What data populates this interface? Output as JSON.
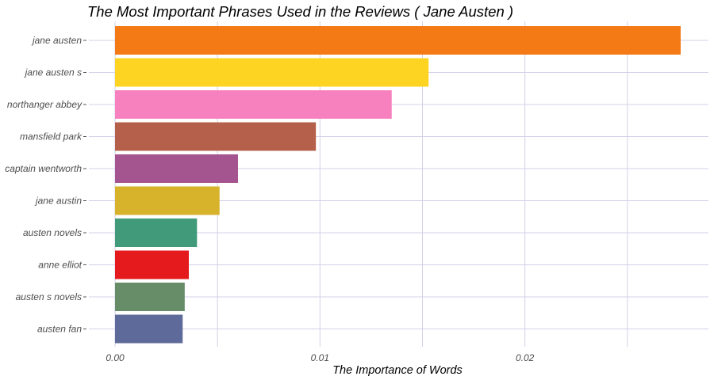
{
  "chart_data": {
    "type": "bar",
    "orientation": "horizontal",
    "title": "The Most Important Phrases Used in the Reviews ( Jane Austen )",
    "xlabel": "The Importance of Words",
    "ylabel": "",
    "xlim": [
      0,
      0.0285
    ],
    "x_ticks": [
      0.0,
      0.01,
      0.02
    ],
    "x_tick_labels": [
      "0.00",
      "0.01",
      "0.02"
    ],
    "x_minor_ticks": [
      0.005,
      0.015,
      0.025
    ],
    "grid": true,
    "legend": "none",
    "categories": [
      "jane austen",
      "jane austen s",
      "northanger abbey",
      "mansfield park",
      "captain wentworth",
      "jane austin",
      "austen novels",
      "anne elliot",
      "austen s novels",
      "austen fan"
    ],
    "values": [
      0.0276,
      0.0153,
      0.0135,
      0.0098,
      0.006,
      0.0051,
      0.004,
      0.0036,
      0.0034,
      0.0033
    ],
    "colors": [
      "#F37A15",
      "#FED422",
      "#F781BF",
      "#B5604A",
      "#A45590",
      "#D7B32C",
      "#419A79",
      "#E41A1C",
      "#668C68",
      "#5E6A99"
    ]
  }
}
